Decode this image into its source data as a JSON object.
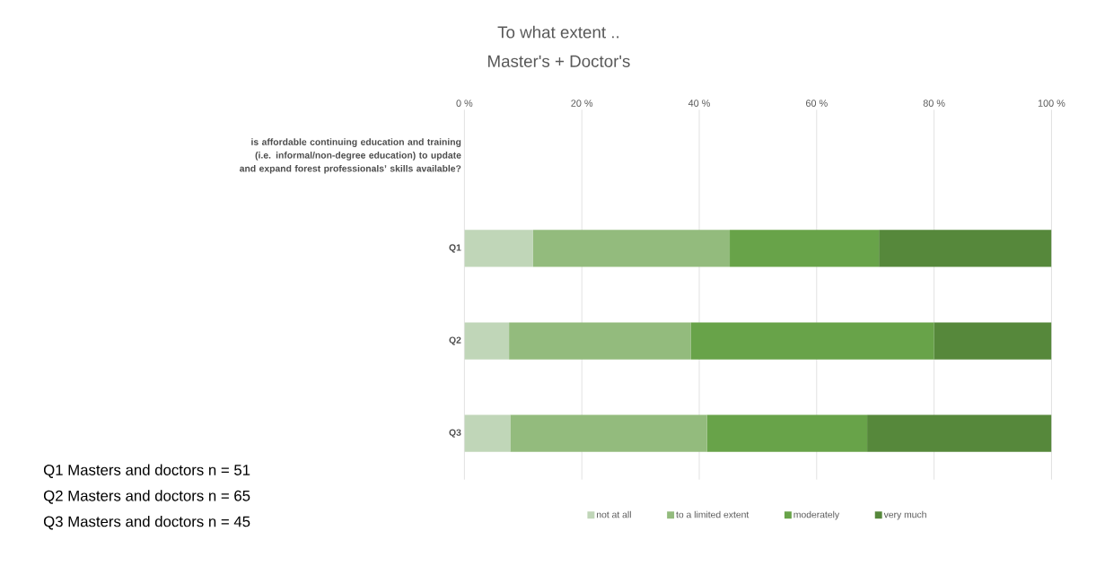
{
  "chart_data": {
    "type": "bar",
    "orientation": "horizontal",
    "stacked": true,
    "title": "To what extent ..",
    "subtitle": "Master's + Doctor's",
    "categories": [
      "is affordable continuing education and training (i.e. informal/non-degree education) to update and expand forest professionals’ skills available?",
      "Q1",
      "Q2",
      "Q3"
    ],
    "series": [
      {
        "name": "not at all",
        "color": "#c0d6b8",
        "values": [
          null,
          11.7,
          7.6,
          7.8
        ]
      },
      {
        "name": "to a limited extent",
        "color": "#93bb7d",
        "values": [
          null,
          33.5,
          31.0,
          33.5
        ]
      },
      {
        "name": "moderately",
        "color": "#68a349",
        "values": [
          null,
          25.4,
          41.4,
          27.3
        ]
      },
      {
        "name": "very much",
        "color": "#56883b",
        "values": [
          null,
          29.4,
          20.0,
          31.4
        ]
      }
    ],
    "xlim": [
      0,
      100
    ],
    "xticks": [
      {
        "value": 0,
        "label": "0 %"
      },
      {
        "value": 20,
        "label": "20 %"
      },
      {
        "value": 40,
        "label": "40 %"
      },
      {
        "value": 60,
        "label": "60 %"
      },
      {
        "value": 80,
        "label": "80 %"
      },
      {
        "value": 100,
        "label": "100 %"
      }
    ],
    "grid": "x",
    "legend": "bottom",
    "annotations": [
      "Q1  Masters and doctors n =  51",
      "Q2 Masters and doctors n =  65",
      "Q3  Masters and doctors n  =  45"
    ]
  }
}
